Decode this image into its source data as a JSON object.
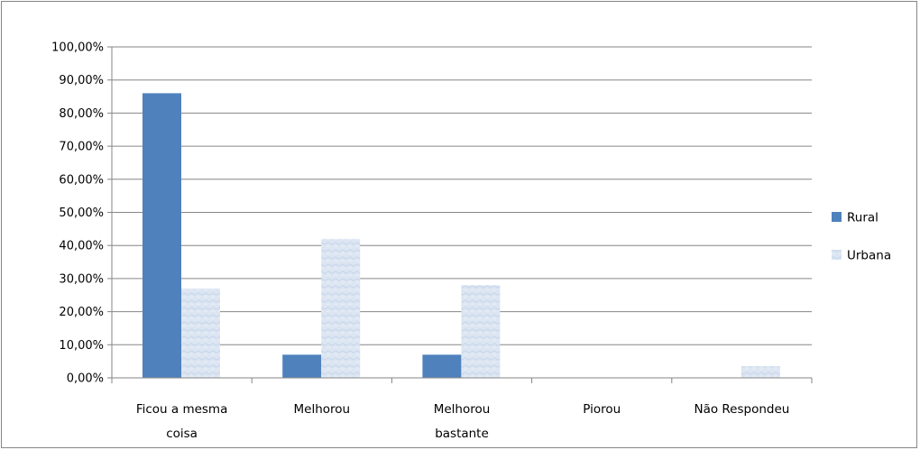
{
  "chart_data": {
    "type": "bar",
    "title": "",
    "xlabel": "",
    "ylabel": "",
    "categories": [
      [
        "Ficou a mesma",
        "coisa"
      ],
      [
        "Melhorou"
      ],
      [
        "Melhorou",
        "bastante"
      ],
      [
        "Piorou"
      ],
      [
        "Não Respondeu"
      ]
    ],
    "series": [
      {
        "name": "Rural",
        "values": [
          0.86,
          0.07,
          0.07,
          0.0,
          0.0
        ],
        "color": "#4f81bd"
      },
      {
        "name": "Urbana",
        "values": [
          0.27,
          0.42,
          0.28,
          0.0,
          0.035
        ],
        "color": "#dce6f2"
      }
    ],
    "ylim": [
      0,
      1
    ],
    "yticks": [
      0,
      0.1,
      0.2,
      0.3,
      0.4,
      0.5,
      0.6,
      0.7,
      0.8,
      0.9,
      1.0
    ],
    "ytick_labels": [
      "0,00%",
      "10,00%",
      "20,00%",
      "30,00%",
      "40,00%",
      "50,00%",
      "60,00%",
      "70,00%",
      "80,00%",
      "90,00%",
      "100,00%"
    ],
    "grid": true,
    "legend_position": "right"
  }
}
